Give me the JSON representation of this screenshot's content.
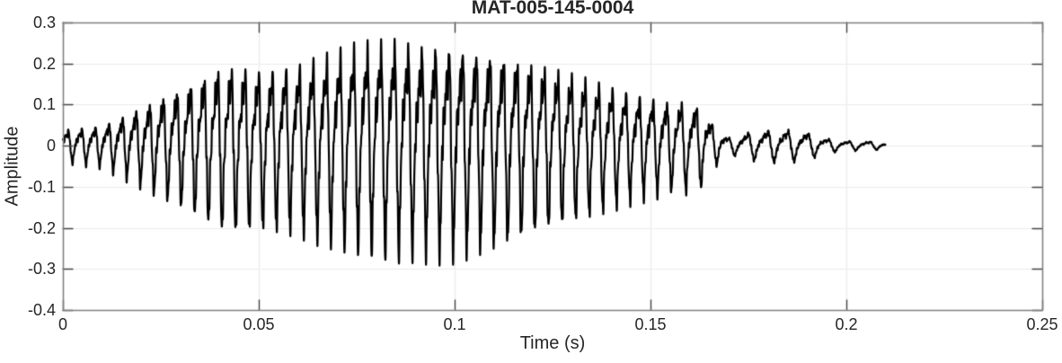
{
  "chart_data": {
    "type": "line",
    "title": "MAT-005-145-0004",
    "xlabel": "Time (s)",
    "ylabel": "Amplitude",
    "xlim": [
      0,
      0.25
    ],
    "ylim": [
      -0.4,
      0.3
    ],
    "xticks": [
      0,
      0.05,
      0.1,
      0.15,
      0.2,
      0.25
    ],
    "xtick_labels": [
      "0",
      "0.05",
      "0.1",
      "0.15",
      "0.2",
      "0.25"
    ],
    "yticks": [
      -0.4,
      -0.3,
      -0.2,
      -0.1,
      0,
      0.1,
      0.2,
      0.3
    ],
    "ytick_labels": [
      "-0.4",
      "-0.3",
      "-0.2",
      "-0.1",
      "0",
      "0.1",
      "0.2",
      "0.3"
    ],
    "grid": true,
    "legend": null,
    "colors": {
      "line": "#000000",
      "box": "#7f7f7f",
      "tick": "#454545",
      "grid": "#ececec",
      "text": "#262626",
      "background": "#ffffff"
    },
    "series": [
      {
        "name": "waveform",
        "t_start": 0,
        "t_end": 0.21,
        "envelope_points": [
          [
            0.0,
            0.04
          ],
          [
            0.005,
            0.046
          ],
          [
            0.01,
            0.052
          ],
          [
            0.015,
            0.075
          ],
          [
            0.02,
            0.1
          ],
          [
            0.025,
            0.125
          ],
          [
            0.03,
            0.148
          ],
          [
            0.035,
            0.175
          ],
          [
            0.04,
            0.205
          ],
          [
            0.045,
            0.21
          ],
          [
            0.05,
            0.2
          ],
          [
            0.055,
            0.205
          ],
          [
            0.06,
            0.212
          ],
          [
            0.065,
            0.228
          ],
          [
            0.07,
            0.24
          ],
          [
            0.075,
            0.255
          ],
          [
            0.08,
            0.262
          ],
          [
            0.085,
            0.27
          ],
          [
            0.09,
            0.262
          ],
          [
            0.095,
            0.266
          ],
          [
            0.1,
            0.265
          ],
          [
            0.105,
            0.256
          ],
          [
            0.11,
            0.245
          ],
          [
            0.115,
            0.23
          ],
          [
            0.12,
            0.215
          ],
          [
            0.125,
            0.2
          ],
          [
            0.13,
            0.185
          ],
          [
            0.135,
            0.17
          ],
          [
            0.14,
            0.152
          ],
          [
            0.145,
            0.136
          ],
          [
            0.15,
            0.122
          ],
          [
            0.155,
            0.11
          ],
          [
            0.16,
            0.112
          ],
          [
            0.163,
            0.1
          ],
          [
            0.166,
            0.055
          ],
          [
            0.17,
            0.02
          ],
          [
            0.175,
            0.034
          ],
          [
            0.18,
            0.04
          ],
          [
            0.185,
            0.04
          ],
          [
            0.19,
            0.034
          ],
          [
            0.195,
            0.018
          ],
          [
            0.2,
            0.012
          ],
          [
            0.205,
            0.012
          ],
          [
            0.21,
            0.008
          ]
        ],
        "freq_profile_hz": [
          [
            0,
            288
          ],
          [
            0.15,
            288
          ],
          [
            0.165,
            250
          ],
          [
            0.172,
            200
          ],
          [
            0.21,
            185
          ]
        ],
        "harmonics": [
          {
            "mult": 1,
            "amp": 1.0,
            "phase": 0.0
          },
          {
            "mult": 2,
            "amp": 0.5,
            "phase": 2.2
          },
          {
            "mult": 3,
            "amp": 0.18,
            "phase": 4.3
          },
          {
            "mult": 5,
            "amp": 0.1,
            "phase": 1.1
          }
        ],
        "neg_gain": 1.13,
        "ripple": [
          {
            "hz": 2317,
            "amp": 0.1,
            "phase": 0.4
          },
          {
            "hz": 3779,
            "amp": 0.05,
            "phase": 2.0
          }
        ],
        "line_width": 2.2
      }
    ]
  }
}
